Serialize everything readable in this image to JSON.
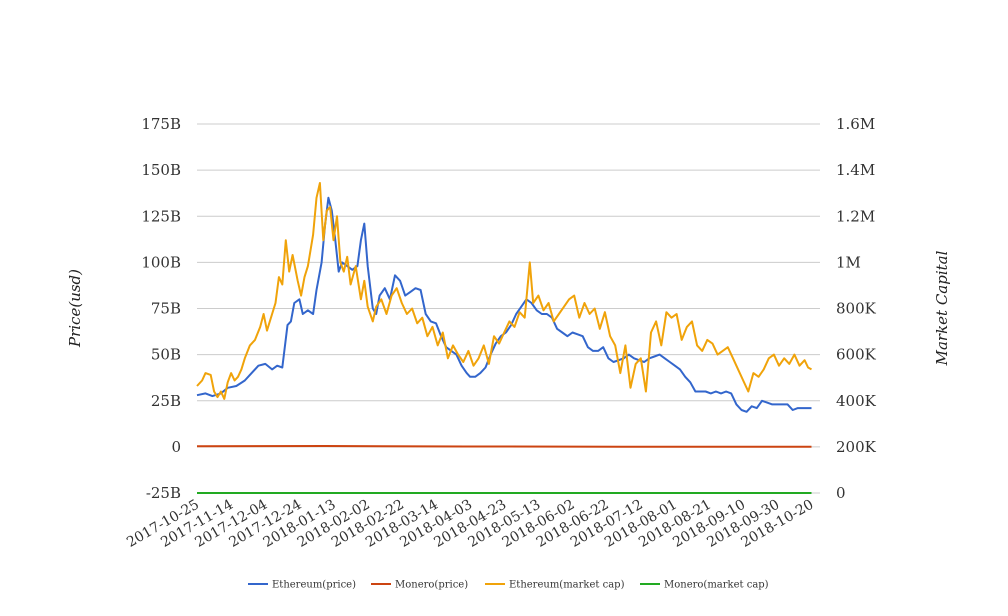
{
  "chart_data": {
    "type": "line",
    "title": "",
    "ylabel_left": "Price(usd)",
    "ylabel_right": "Market Capital",
    "y_left_ticks": [
      {
        "value": -25,
        "label": "-25B"
      },
      {
        "value": 0,
        "label": "0"
      },
      {
        "value": 25,
        "label": "25B"
      },
      {
        "value": 50,
        "label": "50B"
      },
      {
        "value": 75,
        "label": "75B"
      },
      {
        "value": 100,
        "label": "100B"
      },
      {
        "value": 125,
        "label": "125B"
      },
      {
        "value": 150,
        "label": "150B"
      },
      {
        "value": 175,
        "label": "175B"
      }
    ],
    "y_right_ticks": [
      "0",
      "200K",
      "400K",
      "600K",
      "800K",
      "1M",
      "1.2M",
      "1.4M",
      "1.6M"
    ],
    "y_left_range": [
      -25,
      175
    ],
    "x_range": [
      "2017-10-25",
      "2018-10-25"
    ],
    "x_tick_labels": [
      "2017-10-25",
      "2017-11-14",
      "2017-12-04",
      "2017-12-24",
      "2018-01-13",
      "2018-02-02",
      "2018-02-22",
      "2018-03-14",
      "2018-04-03",
      "2018-04-23",
      "2018-05-13",
      "2018-06-02",
      "2018-06-22",
      "2018-07-12",
      "2018-08-01",
      "2018-08-21",
      "2018-09-10",
      "2018-09-30",
      "2018-10-20"
    ],
    "grid": true,
    "legend_position": "bottom",
    "series": [
      {
        "name": "Ethereum(price)",
        "color": "#3366cc",
        "points": [
          [
            "2017-10-25",
            28
          ],
          [
            "2017-10-30",
            29
          ],
          [
            "2017-11-03",
            27.5
          ],
          [
            "2017-11-08",
            29
          ],
          [
            "2017-11-12",
            32
          ],
          [
            "2017-11-17",
            33
          ],
          [
            "2017-11-22",
            36
          ],
          [
            "2017-11-26",
            40
          ],
          [
            "2017-11-30",
            44
          ],
          [
            "2017-12-04",
            45
          ],
          [
            "2017-12-08",
            42
          ],
          [
            "2017-12-11",
            44
          ],
          [
            "2017-12-14",
            43
          ],
          [
            "2017-12-17",
            66
          ],
          [
            "2017-12-19",
            68
          ],
          [
            "2017-12-21",
            78
          ],
          [
            "2017-12-24",
            80
          ],
          [
            "2017-12-26",
            72
          ],
          [
            "2017-12-29",
            74
          ],
          [
            "2018-01-01",
            72
          ],
          [
            "2018-01-03",
            85
          ],
          [
            "2018-01-06",
            100
          ],
          [
            "2018-01-08",
            120
          ],
          [
            "2018-01-10",
            135
          ],
          [
            "2018-01-12",
            128
          ],
          [
            "2018-01-14",
            112
          ],
          [
            "2018-01-16",
            95
          ],
          [
            "2018-01-18",
            100
          ],
          [
            "2018-01-21",
            98
          ],
          [
            "2018-01-24",
            96
          ],
          [
            "2018-01-27",
            98
          ],
          [
            "2018-01-29",
            112
          ],
          [
            "2018-01-31",
            121
          ],
          [
            "2018-02-02",
            98
          ],
          [
            "2018-02-05",
            75
          ],
          [
            "2018-02-07",
            72
          ],
          [
            "2018-02-09",
            82
          ],
          [
            "2018-02-12",
            86
          ],
          [
            "2018-02-15",
            80
          ],
          [
            "2018-02-18",
            93
          ],
          [
            "2018-02-21",
            90
          ],
          [
            "2018-02-24",
            82
          ],
          [
            "2018-02-27",
            84
          ],
          [
            "2018-03-02",
            86
          ],
          [
            "2018-03-05",
            85
          ],
          [
            "2018-03-08",
            72
          ],
          [
            "2018-03-11",
            68
          ],
          [
            "2018-03-14",
            67
          ],
          [
            "2018-03-17",
            60
          ],
          [
            "2018-03-20",
            54
          ],
          [
            "2018-03-23",
            52
          ],
          [
            "2018-03-26",
            50
          ],
          [
            "2018-03-29",
            44
          ],
          [
            "2018-04-01",
            40
          ],
          [
            "2018-04-03",
            38
          ],
          [
            "2018-04-06",
            38
          ],
          [
            "2018-04-09",
            40
          ],
          [
            "2018-04-12",
            43
          ],
          [
            "2018-04-15",
            50
          ],
          [
            "2018-04-18",
            56
          ],
          [
            "2018-04-21",
            60
          ],
          [
            "2018-04-24",
            62
          ],
          [
            "2018-04-27",
            66
          ],
          [
            "2018-04-30",
            72
          ],
          [
            "2018-05-03",
            76
          ],
          [
            "2018-05-06",
            80
          ],
          [
            "2018-05-09",
            78
          ],
          [
            "2018-05-12",
            74
          ],
          [
            "2018-05-15",
            72
          ],
          [
            "2018-05-18",
            72
          ],
          [
            "2018-05-21",
            70
          ],
          [
            "2018-05-24",
            64
          ],
          [
            "2018-05-27",
            62
          ],
          [
            "2018-05-30",
            60
          ],
          [
            "2018-06-02",
            62
          ],
          [
            "2018-06-05",
            61
          ],
          [
            "2018-06-08",
            60
          ],
          [
            "2018-06-11",
            54
          ],
          [
            "2018-06-14",
            52
          ],
          [
            "2018-06-17",
            52
          ],
          [
            "2018-06-20",
            54
          ],
          [
            "2018-06-23",
            48
          ],
          [
            "2018-06-26",
            46
          ],
          [
            "2018-06-29",
            47
          ],
          [
            "2018-07-02",
            48
          ],
          [
            "2018-07-05",
            50
          ],
          [
            "2018-07-08",
            48
          ],
          [
            "2018-07-11",
            47
          ],
          [
            "2018-07-14",
            46
          ],
          [
            "2018-07-17",
            48
          ],
          [
            "2018-07-20",
            49
          ],
          [
            "2018-07-23",
            50
          ],
          [
            "2018-07-26",
            48
          ],
          [
            "2018-07-29",
            46
          ],
          [
            "2018-08-01",
            44
          ],
          [
            "2018-08-04",
            42
          ],
          [
            "2018-08-07",
            38
          ],
          [
            "2018-08-10",
            35
          ],
          [
            "2018-08-13",
            30
          ],
          [
            "2018-08-16",
            30
          ],
          [
            "2018-08-19",
            30
          ],
          [
            "2018-08-22",
            29
          ],
          [
            "2018-08-25",
            30
          ],
          [
            "2018-08-28",
            29
          ],
          [
            "2018-08-31",
            30
          ],
          [
            "2018-09-03",
            29
          ],
          [
            "2018-09-06",
            23
          ],
          [
            "2018-09-09",
            20
          ],
          [
            "2018-09-12",
            19
          ],
          [
            "2018-09-15",
            22
          ],
          [
            "2018-09-18",
            21
          ],
          [
            "2018-09-21",
            25
          ],
          [
            "2018-09-24",
            24
          ],
          [
            "2018-09-27",
            23
          ],
          [
            "2018-09-30",
            23
          ],
          [
            "2018-10-03",
            23
          ],
          [
            "2018-10-06",
            23
          ],
          [
            "2018-10-09",
            20
          ],
          [
            "2018-10-12",
            21
          ],
          [
            "2018-10-15",
            21
          ],
          [
            "2018-10-18",
            21
          ],
          [
            "2018-10-20",
            21
          ]
        ]
      },
      {
        "name": "Monero(price)",
        "color": "#cc4411",
        "points": [
          [
            "2017-10-25",
            0.3
          ],
          [
            "2018-01-08",
            0.5
          ],
          [
            "2018-04-01",
            0.2
          ],
          [
            "2018-07-01",
            0.1
          ],
          [
            "2018-10-20",
            0.1
          ]
        ]
      },
      {
        "name": "Ethereum(market cap)",
        "color": "#f0a30a",
        "points": [
          [
            "2017-10-25",
            33
          ],
          [
            "2017-10-28",
            36
          ],
          [
            "2017-10-30",
            40
          ],
          [
            "2017-11-02",
            39
          ],
          [
            "2017-11-04",
            30
          ],
          [
            "2017-11-06",
            27
          ],
          [
            "2017-11-08",
            30
          ],
          [
            "2017-11-10",
            26
          ],
          [
            "2017-11-12",
            35
          ],
          [
            "2017-11-14",
            40
          ],
          [
            "2017-11-16",
            36
          ],
          [
            "2017-11-18",
            38
          ],
          [
            "2017-11-20",
            42
          ],
          [
            "2017-11-22",
            48
          ],
          [
            "2017-11-25",
            55
          ],
          [
            "2017-11-28",
            58
          ],
          [
            "2017-12-01",
            65
          ],
          [
            "2017-12-03",
            72
          ],
          [
            "2017-12-05",
            63
          ],
          [
            "2017-12-08",
            72
          ],
          [
            "2017-12-10",
            78
          ],
          [
            "2017-12-12",
            92
          ],
          [
            "2017-12-14",
            88
          ],
          [
            "2017-12-16",
            112
          ],
          [
            "2017-12-18",
            95
          ],
          [
            "2017-12-20",
            104
          ],
          [
            "2017-12-23",
            90
          ],
          [
            "2017-12-25",
            82
          ],
          [
            "2017-12-27",
            92
          ],
          [
            "2017-12-29",
            98
          ],
          [
            "2018-01-01",
            115
          ],
          [
            "2018-01-03",
            135
          ],
          [
            "2018-01-05",
            143
          ],
          [
            "2018-01-07",
            112
          ],
          [
            "2018-01-09",
            128
          ],
          [
            "2018-01-11",
            130
          ],
          [
            "2018-01-13",
            112
          ],
          [
            "2018-01-15",
            125
          ],
          [
            "2018-01-17",
            100
          ],
          [
            "2018-01-19",
            95
          ],
          [
            "2018-01-21",
            103
          ],
          [
            "2018-01-23",
            88
          ],
          [
            "2018-01-26",
            98
          ],
          [
            "2018-01-29",
            80
          ],
          [
            "2018-01-31",
            90
          ],
          [
            "2018-02-02",
            76
          ],
          [
            "2018-02-05",
            68
          ],
          [
            "2018-02-07",
            76
          ],
          [
            "2018-02-10",
            80
          ],
          [
            "2018-02-13",
            72
          ],
          [
            "2018-02-16",
            82
          ],
          [
            "2018-02-19",
            86
          ],
          [
            "2018-02-22",
            78
          ],
          [
            "2018-02-25",
            72
          ],
          [
            "2018-02-28",
            75
          ],
          [
            "2018-03-03",
            67
          ],
          [
            "2018-03-06",
            70
          ],
          [
            "2018-03-09",
            60
          ],
          [
            "2018-03-12",
            65
          ],
          [
            "2018-03-15",
            55
          ],
          [
            "2018-03-18",
            62
          ],
          [
            "2018-03-21",
            48
          ],
          [
            "2018-03-24",
            55
          ],
          [
            "2018-03-27",
            50
          ],
          [
            "2018-03-30",
            46
          ],
          [
            "2018-04-02",
            52
          ],
          [
            "2018-04-05",
            44
          ],
          [
            "2018-04-08",
            48
          ],
          [
            "2018-04-11",
            55
          ],
          [
            "2018-04-14",
            45
          ],
          [
            "2018-04-17",
            60
          ],
          [
            "2018-04-20",
            56
          ],
          [
            "2018-04-23",
            62
          ],
          [
            "2018-04-26",
            68
          ],
          [
            "2018-04-29",
            65
          ],
          [
            "2018-05-02",
            73
          ],
          [
            "2018-05-05",
            70
          ],
          [
            "2018-05-08",
            100
          ],
          [
            "2018-05-10",
            78
          ],
          [
            "2018-05-13",
            82
          ],
          [
            "2018-05-16",
            74
          ],
          [
            "2018-05-19",
            78
          ],
          [
            "2018-05-22",
            68
          ],
          [
            "2018-05-25",
            72
          ],
          [
            "2018-05-28",
            76
          ],
          [
            "2018-05-31",
            80
          ],
          [
            "2018-06-03",
            82
          ],
          [
            "2018-06-06",
            70
          ],
          [
            "2018-06-09",
            78
          ],
          [
            "2018-06-12",
            72
          ],
          [
            "2018-06-15",
            75
          ],
          [
            "2018-06-18",
            64
          ],
          [
            "2018-06-21",
            73
          ],
          [
            "2018-06-24",
            60
          ],
          [
            "2018-06-27",
            55
          ],
          [
            "2018-06-30",
            40
          ],
          [
            "2018-07-03",
            55
          ],
          [
            "2018-07-06",
            32
          ],
          [
            "2018-07-09",
            45
          ],
          [
            "2018-07-12",
            48
          ],
          [
            "2018-07-15",
            30
          ],
          [
            "2018-07-18",
            62
          ],
          [
            "2018-07-21",
            68
          ],
          [
            "2018-07-24",
            55
          ],
          [
            "2018-07-27",
            73
          ],
          [
            "2018-07-30",
            70
          ],
          [
            "2018-08-02",
            72
          ],
          [
            "2018-08-05",
            58
          ],
          [
            "2018-08-08",
            65
          ],
          [
            "2018-08-11",
            68
          ],
          [
            "2018-08-14",
            55
          ],
          [
            "2018-08-17",
            52
          ],
          [
            "2018-08-20",
            58
          ],
          [
            "2018-08-23",
            56
          ],
          [
            "2018-08-26",
            50
          ],
          [
            "2018-08-29",
            52
          ],
          [
            "2018-09-01",
            54
          ],
          [
            "2018-09-04",
            48
          ],
          [
            "2018-09-07",
            42
          ],
          [
            "2018-09-10",
            36
          ],
          [
            "2018-09-13",
            30
          ],
          [
            "2018-09-16",
            40
          ],
          [
            "2018-09-19",
            38
          ],
          [
            "2018-09-22",
            42
          ],
          [
            "2018-09-25",
            48
          ],
          [
            "2018-09-28",
            50
          ],
          [
            "2018-10-01",
            44
          ],
          [
            "2018-10-04",
            48
          ],
          [
            "2018-10-07",
            45
          ],
          [
            "2018-10-10",
            50
          ],
          [
            "2018-10-13",
            44
          ],
          [
            "2018-10-16",
            47
          ],
          [
            "2018-10-18",
            43
          ],
          [
            "2018-10-20",
            42
          ]
        ]
      },
      {
        "name": "Monero(market cap)",
        "color": "#22aa22",
        "points": [
          [
            "2017-10-25",
            -25
          ],
          [
            "2018-10-20",
            -25
          ]
        ]
      }
    ]
  }
}
